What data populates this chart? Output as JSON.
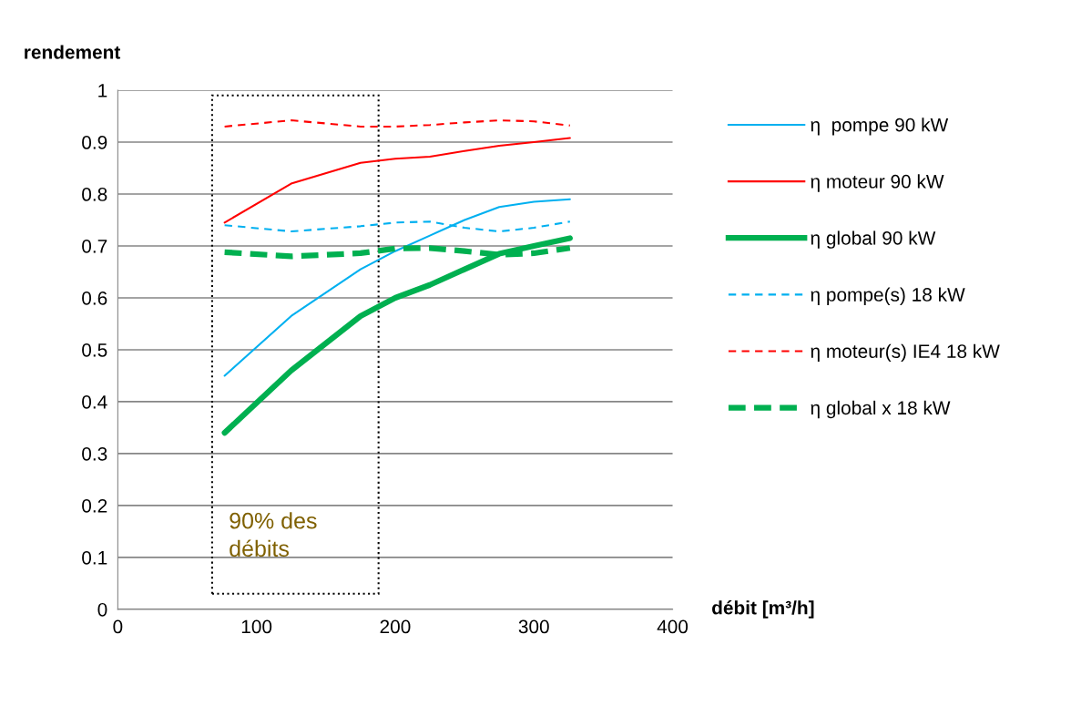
{
  "chart_data": {
    "type": "line",
    "xlabel": "débit [m³/h]",
    "ylabel": "rendement",
    "x": [
      77,
      125,
      175,
      200,
      225,
      250,
      275,
      300,
      326
    ],
    "xlim": [
      0,
      400
    ],
    "xticks": [
      0,
      100,
      200,
      300,
      400
    ],
    "ylim": [
      0,
      1
    ],
    "yticks": [
      0,
      0.1,
      0.2,
      0.3,
      0.4,
      0.5,
      0.6,
      0.7,
      0.8,
      0.9,
      1
    ],
    "grid": "y",
    "legend": "right",
    "marker": "none",
    "series": [
      {
        "name": "η  pompe 90 kW",
        "color": "#00b0f0",
        "line_style": "solid",
        "values": [
          0.45,
          0.565,
          0.655,
          0.69,
          0.72,
          0.75,
          0.775,
          0.785,
          0.79
        ]
      },
      {
        "name": "η moteur 90 kW",
        "color": "#ff0000",
        "line_style": "solid",
        "values": [
          0.745,
          0.82,
          0.86,
          0.868,
          0.872,
          0.883,
          0.893,
          0.9,
          0.908
        ]
      },
      {
        "name": "η global 90 kW",
        "color": "#00b050",
        "line_style": "solid",
        "values": [
          0.34,
          0.46,
          0.565,
          0.6,
          0.625,
          0.655,
          0.685,
          0.7,
          0.715
        ]
      },
      {
        "name": "η pompe(s) 18 kW",
        "color": "#00b0f0",
        "line_style": "dashed",
        "values": [
          0.74,
          0.728,
          0.738,
          0.745,
          0.747,
          0.735,
          0.728,
          0.735,
          0.747
        ]
      },
      {
        "name": "η moteur(s) IE4 18 kW",
        "color": "#ff0000",
        "line_style": "dashed",
        "values": [
          0.93,
          0.942,
          0.93,
          0.93,
          0.933,
          0.938,
          0.942,
          0.94,
          0.932
        ]
      },
      {
        "name": "η global x 18 kW",
        "color": "#00b050",
        "line_style": "dashed",
        "values": [
          0.688,
          0.68,
          0.686,
          0.695,
          0.696,
          0.69,
          0.683,
          0.686,
          0.696
        ]
      }
    ],
    "annotations": [
      "90% des débits"
    ]
  }
}
